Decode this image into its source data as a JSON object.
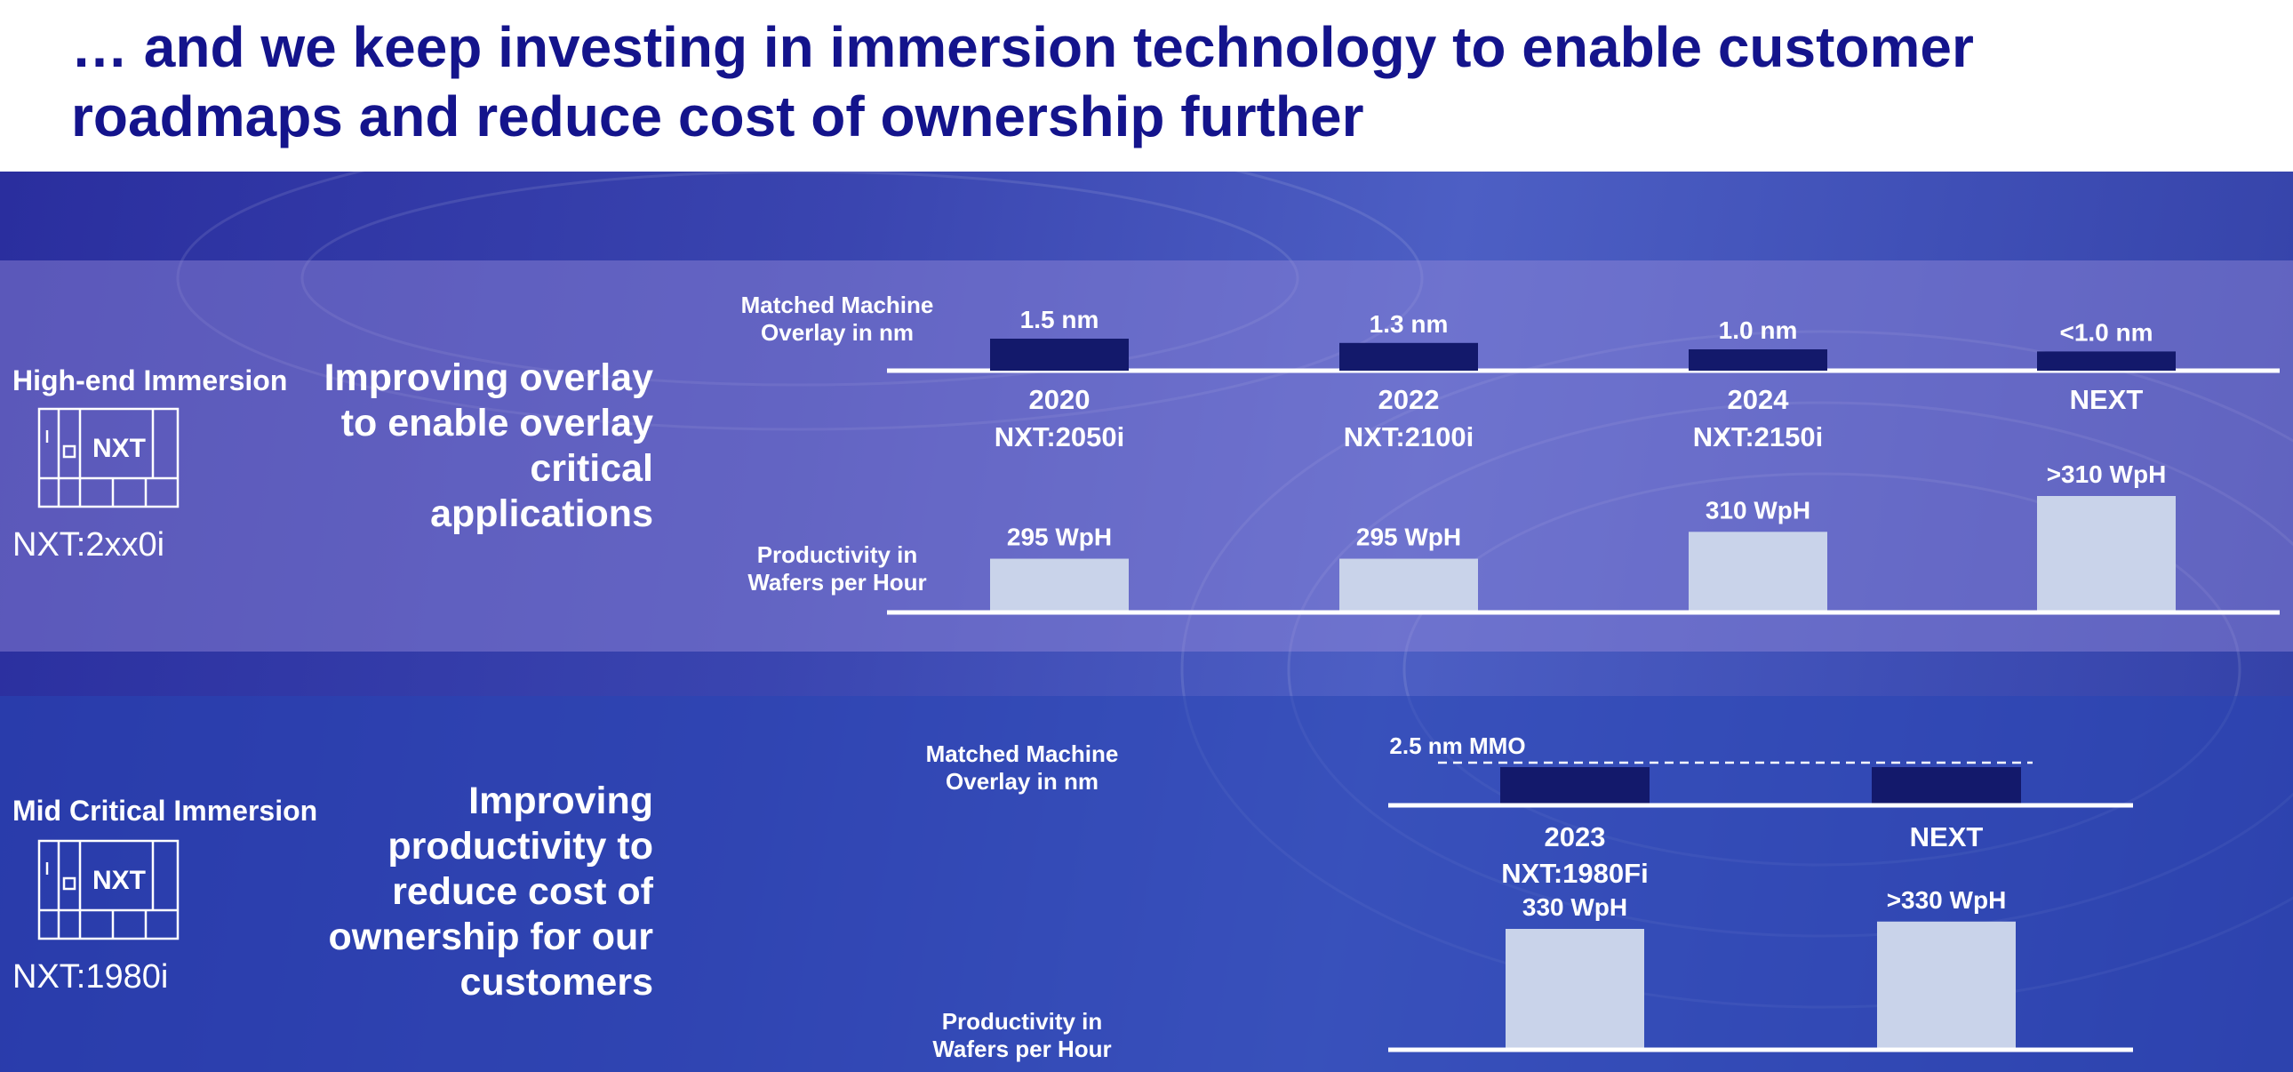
{
  "title": "… and we keep investing in immersion technology to enable customer roadmaps and reduce cost of ownership further",
  "colors": {
    "title": "#14148c",
    "overlay_bar": "#13196b",
    "productivity_bar": "#c9d3ea",
    "axis": "#ffffff"
  },
  "high_end": {
    "section_label": "High-end Immersion",
    "machine_icon_label": "NXT",
    "product": "NXT:2xx0i",
    "headline": "Improving overlay to enable overlay critical applications",
    "overlay_axis_label": "Matched Machine Overlay in nm",
    "productivity_axis_label": "Productivity in Wafers per Hour"
  },
  "mid_critical": {
    "section_label": "Mid Critical Immersion",
    "machine_icon_label": "NXT",
    "product": "NXT:1980i",
    "headline": "Improving productivity to reduce cost of ownership for our customers",
    "overlay_axis_label": "Matched Machine Overlay in nm",
    "productivity_axis_label": "Productivity in Wafers per Hour",
    "reference_line_label": "2.5 nm MMO"
  },
  "chart_data": [
    {
      "type": "bar",
      "name": "High-end Immersion overlay",
      "categories": [
        "2020",
        "2022",
        "2024",
        "NEXT"
      ],
      "machines": [
        "NXT:2050i",
        "NXT:2100i",
        "NXT:2150i",
        ""
      ],
      "values": [
        1.5,
        1.3,
        1.0,
        0.9
      ],
      "labels": [
        "1.5 nm",
        "1.3 nm",
        "1.0 nm",
        "<1.0 nm"
      ],
      "ylabel": "Matched Machine Overlay in nm",
      "ylim": [
        0,
        2.0
      ]
    },
    {
      "type": "bar",
      "name": "High-end Immersion productivity",
      "categories": [
        "2020",
        "2022",
        "2024",
        "NEXT"
      ],
      "values": [
        295,
        295,
        310,
        330
      ],
      "labels": [
        "295 WpH",
        "295 WpH",
        "310 WpH",
        ">310 WpH"
      ],
      "ylabel": "Productivity in Wafers per Hour",
      "ylim": [
        0,
        340
      ]
    },
    {
      "type": "bar",
      "name": "Mid Critical Immersion overlay",
      "categories": [
        "2023",
        "NEXT"
      ],
      "values": [
        2.5,
        2.5
      ],
      "reference_line": 2.5,
      "ylabel": "Matched Machine Overlay in nm",
      "ylim": [
        0,
        3.0
      ]
    },
    {
      "type": "bar",
      "name": "Mid Critical Immersion productivity",
      "categories": [
        "2023",
        "NEXT"
      ],
      "machines": [
        "NXT:1980Fi",
        ""
      ],
      "values": [
        330,
        350
      ],
      "labels": [
        "330 WpH",
        ">330 WpH"
      ],
      "ylabel": "Productivity in Wafers per Hour",
      "ylim": [
        0,
        480
      ]
    }
  ]
}
